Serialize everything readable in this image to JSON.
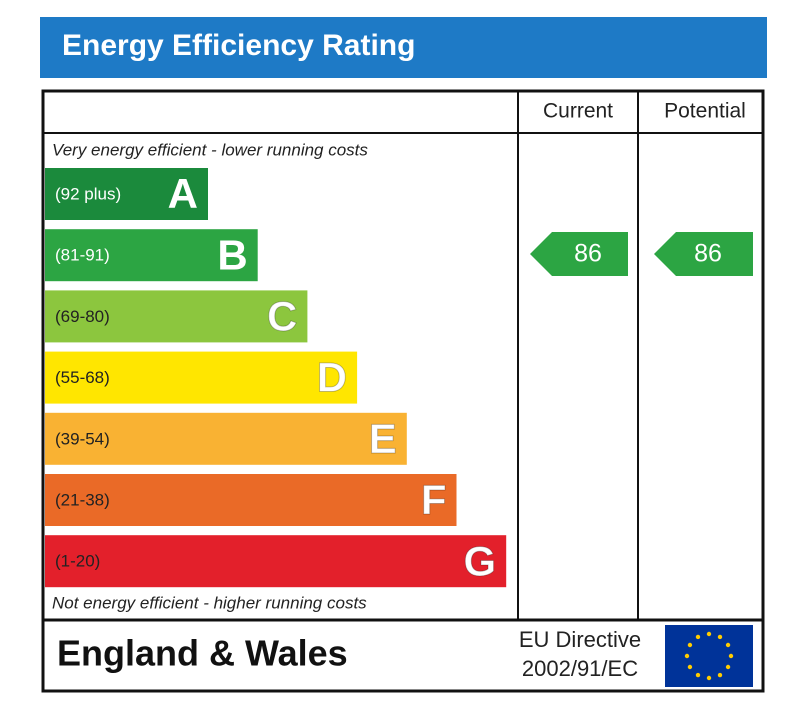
{
  "title": "Energy Efficiency Rating",
  "headers": [
    "Current",
    "Potential"
  ],
  "top_note": "Very energy efficient - lower running costs",
  "bottom_note": "Not energy efficient - higher running costs",
  "bands": [
    {
      "range": "(92 plus)",
      "letter": "A",
      "color": "#1b8a3c",
      "text_color": "#ffffff"
    },
    {
      "range": "(81-91)",
      "letter": "B",
      "color": "#2ca543",
      "text_color": "#ffffff"
    },
    {
      "range": "(69-80)",
      "letter": "C",
      "color": "#8cc63e",
      "text_color": "#222222"
    },
    {
      "range": "(55-68)",
      "letter": "D",
      "color": "#ffe600",
      "text_color": "#222222"
    },
    {
      "range": "(39-54)",
      "letter": "E",
      "color": "#f9b233",
      "text_color": "#222222"
    },
    {
      "range": "(21-38)",
      "letter": "F",
      "color": "#ea6a27",
      "text_color": "#222222"
    },
    {
      "range": "(1-20)",
      "letter": "G",
      "color": "#e3202b",
      "text_color": "#222222"
    }
  ],
  "current": "86",
  "potential": "86",
  "footer": {
    "region": "England & Wales",
    "directive": [
      "EU Directive",
      "2002/91/EC"
    ]
  }
}
